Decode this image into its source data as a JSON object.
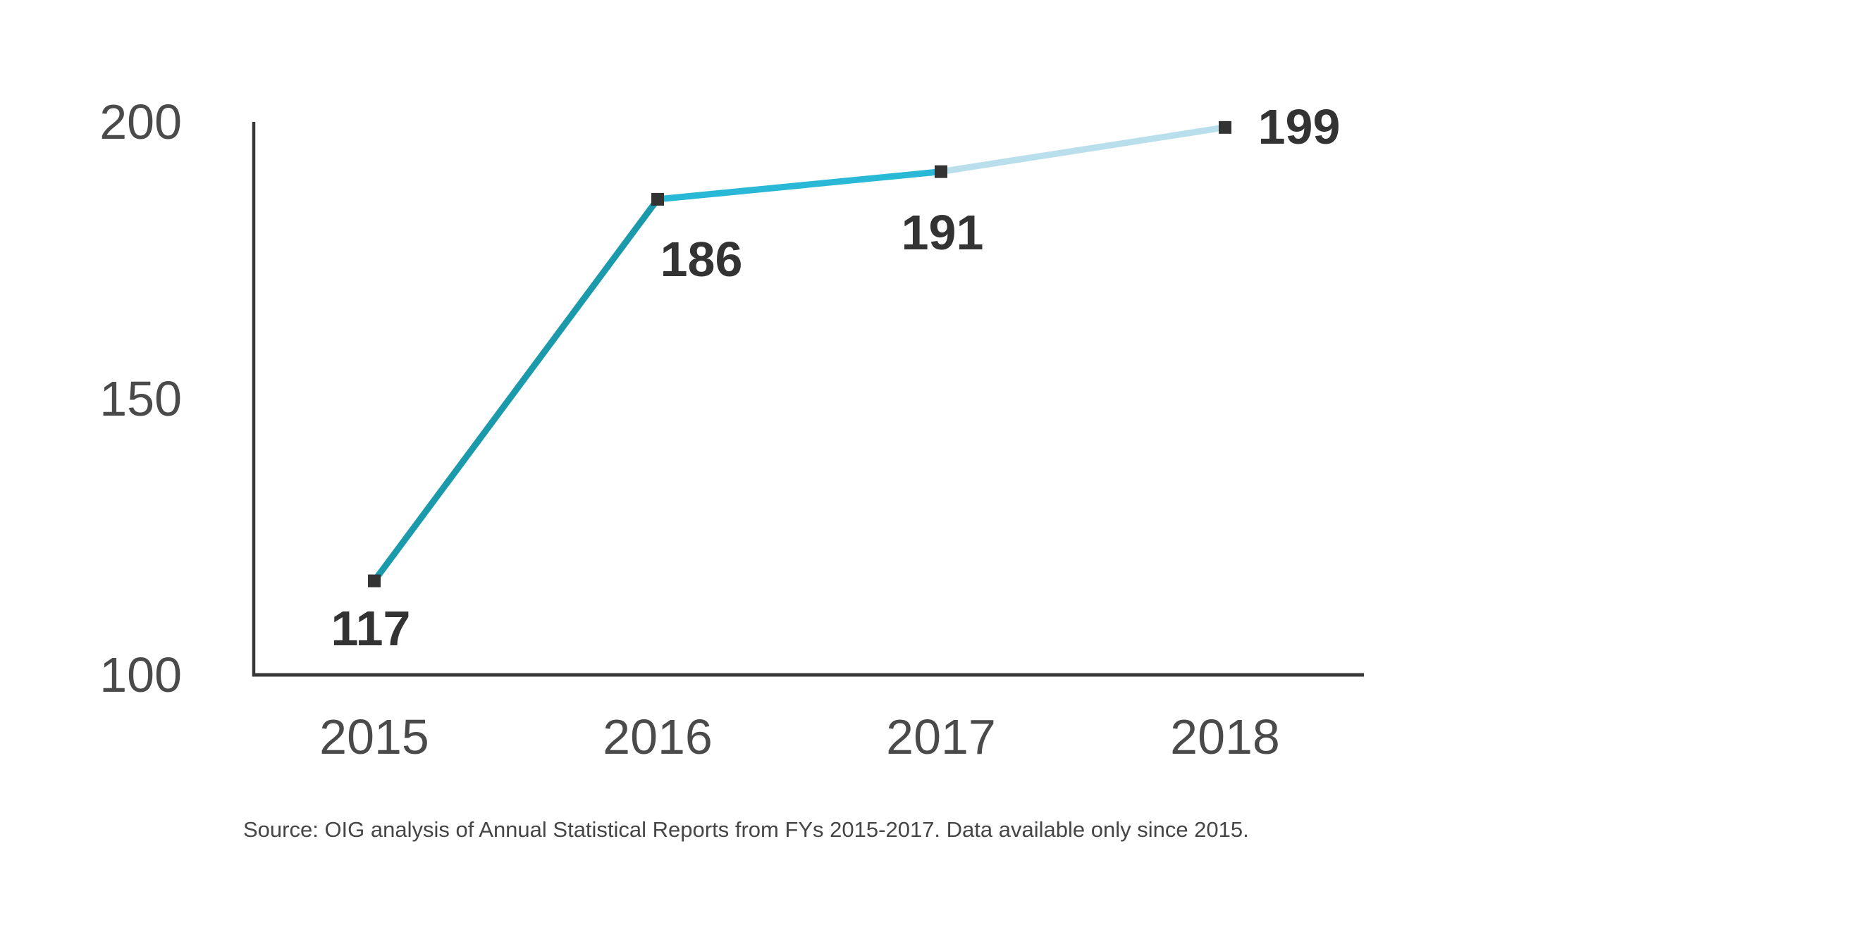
{
  "chart_data": {
    "type": "line",
    "x_labels": [
      "2015",
      "2016",
      "2017",
      "2018"
    ],
    "series": [
      {
        "name": "count-by-fiscal-year",
        "values": [
          117,
          186,
          191,
          199
        ],
        "point_labels": [
          "117",
          "186",
          "191",
          "199"
        ]
      }
    ],
    "ylim": [
      100,
      200
    ],
    "y_ticks": [
      200,
      150,
      100
    ],
    "y_tick_labels": [
      "200",
      "150",
      "100"
    ],
    "grid": false,
    "legend_position": "none",
    "marker_shape": "square",
    "colors": {
      "segment_2015_2016": "#1b9aab",
      "segment_2016_2017": "#29b8d6",
      "segment_2017_2018": "#b9dfed",
      "marker": "#333333",
      "axis": "#383838",
      "tick_labels": "#4a4a4a",
      "data_labels": "#333333"
    }
  },
  "source_note": "Source: OIG analysis of Annual Statistical Reports from FYs 2015-2017. Data available only since 2015."
}
